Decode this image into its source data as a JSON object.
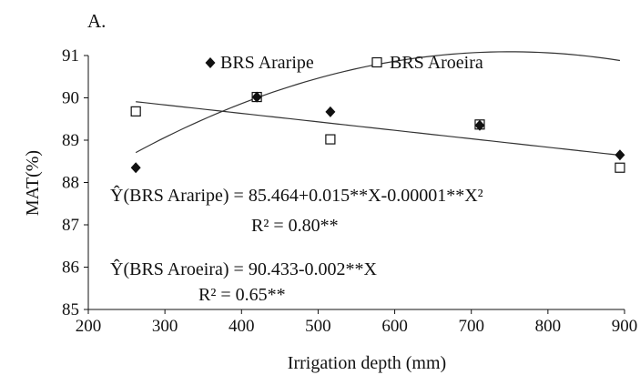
{
  "chart_data": {
    "type": "scatter",
    "panel_label": "A.",
    "xlabel": "Irrigation depth (mm)",
    "ylabel": "MAT(%)",
    "xlim": [
      200,
      900
    ],
    "ylim": [
      85,
      91
    ],
    "xticks": [
      "200",
      "300",
      "400",
      "500",
      "600",
      "700",
      "800",
      "900"
    ],
    "yticks": [
      "85",
      "86",
      "87",
      "88",
      "89",
      "90",
      "91"
    ],
    "grid": false,
    "legend_position": "top-center",
    "series": [
      {
        "name": "BRS Araripe",
        "marker": "filled-diamond",
        "color": "#111111",
        "points": [
          {
            "x": 262,
            "y": 88.35
          },
          {
            "x": 420,
            "y": 90.02
          },
          {
            "x": 516,
            "y": 89.67
          },
          {
            "x": 711,
            "y": 89.35
          },
          {
            "x": 894,
            "y": 88.65
          }
        ],
        "fit": {
          "type": "quadratic",
          "a": 85.464,
          "b": 0.015,
          "c": -1e-05
        },
        "equation": "Ŷ(BRS Araripe) = 85.464+0.015**X-0.00001**X²",
        "r2": "R² = 0.80**"
      },
      {
        "name": "BRS Aroeira",
        "marker": "open-square",
        "color": "#111111",
        "points": [
          {
            "x": 262,
            "y": 89.68
          },
          {
            "x": 420,
            "y": 90.02
          },
          {
            "x": 516,
            "y": 89.02
          },
          {
            "x": 711,
            "y": 89.37
          },
          {
            "x": 894,
            "y": 88.35
          }
        ],
        "fit": {
          "type": "linear",
          "a": 90.433,
          "b": -0.002
        },
        "equation": "Ŷ(BRS Aroeira) = 90.433-0.002**X",
        "r2": "R² = 0.65**"
      }
    ]
  }
}
